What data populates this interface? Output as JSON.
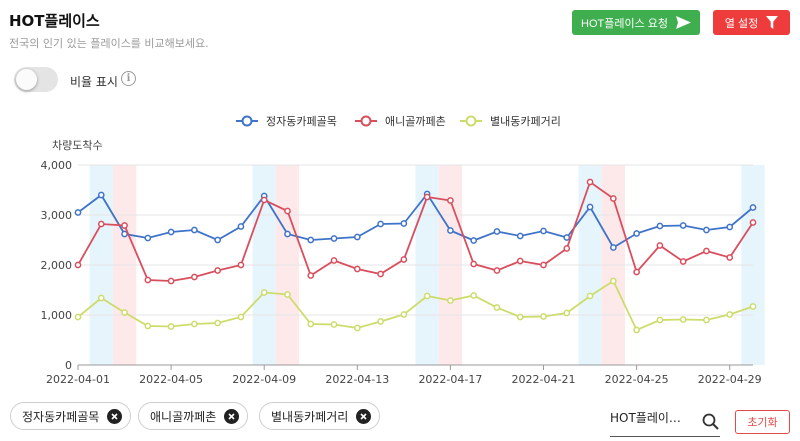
{
  "header": {
    "title": "HOT플레이스",
    "subtitle": "전국의 인기 있는 플레이스를 비교해보세요."
  },
  "toolbar": {
    "request_label": "HOT플레이스 요청",
    "columns_label": "열 설정",
    "request_icon": "send-arrow-icon",
    "columns_icon": "filter-funnel-icon"
  },
  "ratio_toggle": {
    "label": "비율 표시",
    "on": false,
    "info_icon": "ⓘ"
  },
  "chart_data": {
    "type": "line",
    "ylabel": "차량도착수",
    "ylim": [
      0,
      4000
    ],
    "yticks": [
      0,
      1000,
      2000,
      3000,
      4000
    ],
    "ytick_labels": [
      "0",
      "1,000",
      "2,000",
      "3,000",
      "4,000"
    ],
    "x": [
      "2022-04-01",
      "2022-04-02",
      "2022-04-03",
      "2022-04-04",
      "2022-04-05",
      "2022-04-06",
      "2022-04-07",
      "2022-04-08",
      "2022-04-09",
      "2022-04-10",
      "2022-04-11",
      "2022-04-12",
      "2022-04-13",
      "2022-04-14",
      "2022-04-15",
      "2022-04-16",
      "2022-04-17",
      "2022-04-18",
      "2022-04-19",
      "2022-04-20",
      "2022-04-21",
      "2022-04-22",
      "2022-04-23",
      "2022-04-24",
      "2022-04-25",
      "2022-04-26",
      "2022-04-27",
      "2022-04-28",
      "2022-04-29",
      "2022-04-30"
    ],
    "xtick_labels": [
      "2022-04-01",
      "2022-04-05",
      "2022-04-09",
      "2022-04-13",
      "2022-04-17",
      "2022-04-21",
      "2022-04-25",
      "2022-04-29"
    ],
    "legend_position": "top-center",
    "grid": true,
    "saturday_dates": [
      "2022-04-02",
      "2022-04-09",
      "2022-04-16",
      "2022-04-23",
      "2022-04-30"
    ],
    "sunday_dates": [
      "2022-04-03",
      "2022-04-10",
      "2022-04-17",
      "2022-04-24"
    ],
    "saturday_color": "#e6f4fc",
    "sunday_color": "#fde8ea",
    "series": [
      {
        "name": "정자동카페골목",
        "color": "#3f73c9",
        "values": [
          3050,
          3400,
          2620,
          2540,
          2660,
          2700,
          2500,
          2770,
          3380,
          2620,
          2500,
          2530,
          2560,
          2820,
          2830,
          3420,
          2690,
          2490,
          2670,
          2580,
          2680,
          2550,
          3160,
          2350,
          2630,
          2780,
          2790,
          2700,
          2760,
          3150
        ]
      },
      {
        "name": "애니골까페촌",
        "color": "#d94e5d",
        "values": [
          2000,
          2820,
          2790,
          1700,
          1680,
          1760,
          1890,
          2000,
          3300,
          3080,
          1790,
          2090,
          1920,
          1820,
          2110,
          3360,
          3290,
          2020,
          1890,
          2080,
          2000,
          2330,
          3660,
          3330,
          1860,
          2390,
          2070,
          2280,
          2150,
          2850
        ]
      },
      {
        "name": "별내동카페거리",
        "color": "#cddc6a",
        "values": [
          960,
          1340,
          1050,
          780,
          770,
          820,
          840,
          960,
          1450,
          1410,
          820,
          810,
          740,
          870,
          1010,
          1380,
          1290,
          1390,
          1150,
          960,
          970,
          1040,
          1380,
          1680,
          700,
          900,
          910,
          900,
          1010,
          1170
        ]
      }
    ]
  },
  "filters": {
    "chips": [
      {
        "label": "정자동카페골목"
      },
      {
        "label": "애니골까페촌"
      },
      {
        "label": "별내동카페거리"
      }
    ],
    "chip_remove_icon": "close-circle-icon"
  },
  "search": {
    "value": "HOT플레이…",
    "icon": "search-icon"
  },
  "reset": {
    "label": "초기화"
  }
}
